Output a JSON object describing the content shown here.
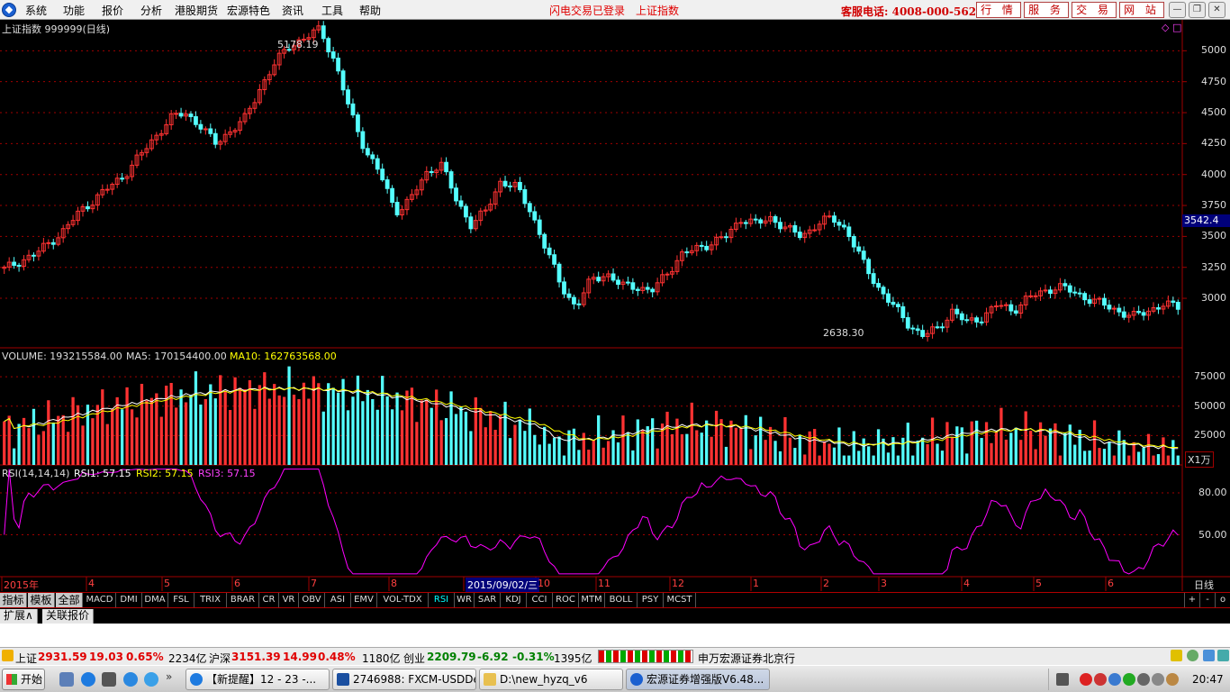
{
  "menubar": {
    "items": [
      "系统",
      "功能",
      "报价",
      "分析",
      "港股期货",
      "宏源特色",
      "资讯",
      "工具",
      "帮助"
    ],
    "flash_status": "闪电交易已登录",
    "index_name": "上证指数",
    "hotline": "客服电话: 4008-000-562",
    "buttons": [
      "行 情",
      "服 务",
      "交 易",
      "网 站"
    ]
  },
  "chart": {
    "title": "上证指数 999999(日线)",
    "high_label": "5178.19",
    "low_label": "2638.30",
    "price_ticks": [
      "5000",
      "4750",
      "4500",
      "4250",
      "4000",
      "3750",
      "3500",
      "3250",
      "3000"
    ],
    "current_price": "3542.4",
    "volume_header": {
      "vol": "VOLUME: 193215584.00",
      "ma5": "MA5: 170154400.00",
      "ma10": "MA10: 162763568.00"
    },
    "volume_ticks": [
      "75000",
      "50000",
      "25000"
    ],
    "volume_unit": "X1万",
    "rsi_header": {
      "name": "RSI(14,14,14)",
      "rsi1": "RSI1: 57.15",
      "rsi2": "RSI2: 57.15",
      "rsi3": "RSI3: 57.15"
    },
    "rsi_ticks": [
      "80.00",
      "50.00"
    ],
    "date_axis": [
      "2015年",
      "4",
      "5",
      "6",
      "7",
      "8",
      "2015/09/02/三",
      "10",
      "11",
      "12",
      "1",
      "2",
      "3",
      "4",
      "5",
      "6"
    ],
    "period": "日线",
    "colors": {
      "up": "#ff3232",
      "down": "#54ffff",
      "ma5": "#ffffff",
      "ma10": "#ffff00",
      "rsi": "#ff00ff",
      "grid": "#a00000"
    }
  },
  "chart_data": {
    "type": "candlestick",
    "price_range": [
      2600,
      5250
    ],
    "closes_daily_approx": [
      3234,
      3300,
      3350,
      3450,
      3550,
      3700,
      3800,
      3900,
      4000,
      4150,
      4300,
      4450,
      4500,
      4400,
      4250,
      4350,
      4450,
      4700,
      4900,
      5050,
      5100,
      5178,
      4900,
      4500,
      4200,
      4000,
      3700,
      3800,
      4000,
      4100,
      3800,
      3600,
      3700,
      3950,
      3900,
      3700,
      3400,
      3100,
      2927,
      3150,
      3200,
      3100,
      3100,
      3050,
      3200,
      3350,
      3400,
      3450,
      3500,
      3650,
      3600,
      3650,
      3560,
      3500,
      3600,
      3650,
      3550,
      3300,
      3100,
      2950,
      2800,
      2700,
      2750,
      2900,
      2800,
      2850,
      2950,
      2900,
      3000,
      3050,
      3100,
      3050,
      3000,
      2950,
      2900,
      2850,
      2900,
      2950,
      2931
    ],
    "volume_ma": "MA5/MA10 lines",
    "rsi_range": [
      20,
      100
    ]
  },
  "tabs": {
    "groups": [
      "指标",
      "模板",
      "全部"
    ],
    "indicators": [
      "MACD",
      "DMI",
      "DMA",
      "FSL",
      "TRIX",
      "BRAR",
      "CR",
      "VR",
      "OBV",
      "ASI",
      "EMV",
      "VOL-TDX",
      "RSI",
      "WR",
      "SAR",
      "KDJ",
      "CCI",
      "ROC",
      "MTM",
      "BOLL",
      "PSY",
      "MCST"
    ],
    "active": "RSI",
    "right_buttons": [
      "+",
      "-",
      "o"
    ]
  },
  "ext": {
    "expand": "扩展∧",
    "quote": "关联报价"
  },
  "status": {
    "sh_name": "上证",
    "sh_price": "2931.59",
    "sh_chg": "19.03",
    "sh_pct": "0.65%",
    "sh_amt": "2234亿",
    "hs_name": "沪深",
    "hs_price": "3151.39",
    "hs_chg": "14.99",
    "hs_pct": "0.48%",
    "hs_amt": "1180亿",
    "cy_name": "创业",
    "cy_price": "2209.79",
    "cy_chg": "-6.92",
    "cy_pct": "-0.31%",
    "cy_amt": "1395亿",
    "broker": "申万宏源证券北京行"
  },
  "taskbar": {
    "start": "开始",
    "tasks": [
      "【新提醒】12 - 23 -...",
      "2746988: FXCM-USDDe...",
      "D:\\new_hyzq_v6",
      "宏源证券增强版V6.48..."
    ],
    "clock": "20:47"
  }
}
